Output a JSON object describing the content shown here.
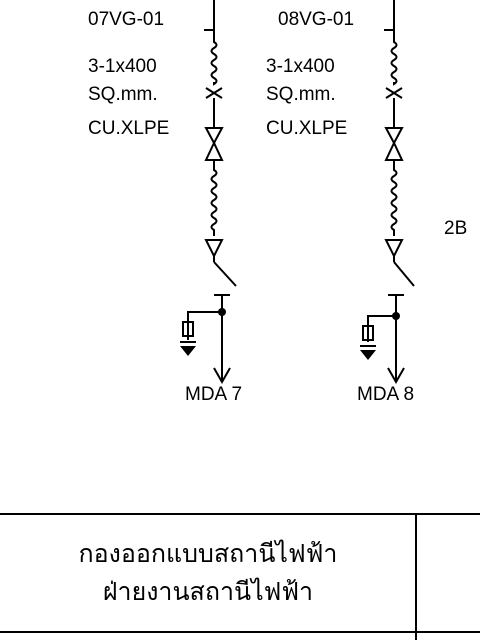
{
  "feeders": [
    {
      "tag": "07VG-01",
      "cable_size": "3-1x400",
      "cable_unit": "SQ.mm.",
      "cable_type": "CU.XLPE",
      "destination": "MDA 7"
    },
    {
      "tag": "08VG-01",
      "cable_size": "3-1x400",
      "cable_unit": "SQ.mm.",
      "cable_type": "CU.XLPE",
      "destination": "MDA 8"
    }
  ],
  "edge_label": "2B",
  "title_block": {
    "line1": "กองออกแบบสถานีไฟฟ้า",
    "line2": "ฝ่ายงานสถานีไฟฟ้า"
  }
}
